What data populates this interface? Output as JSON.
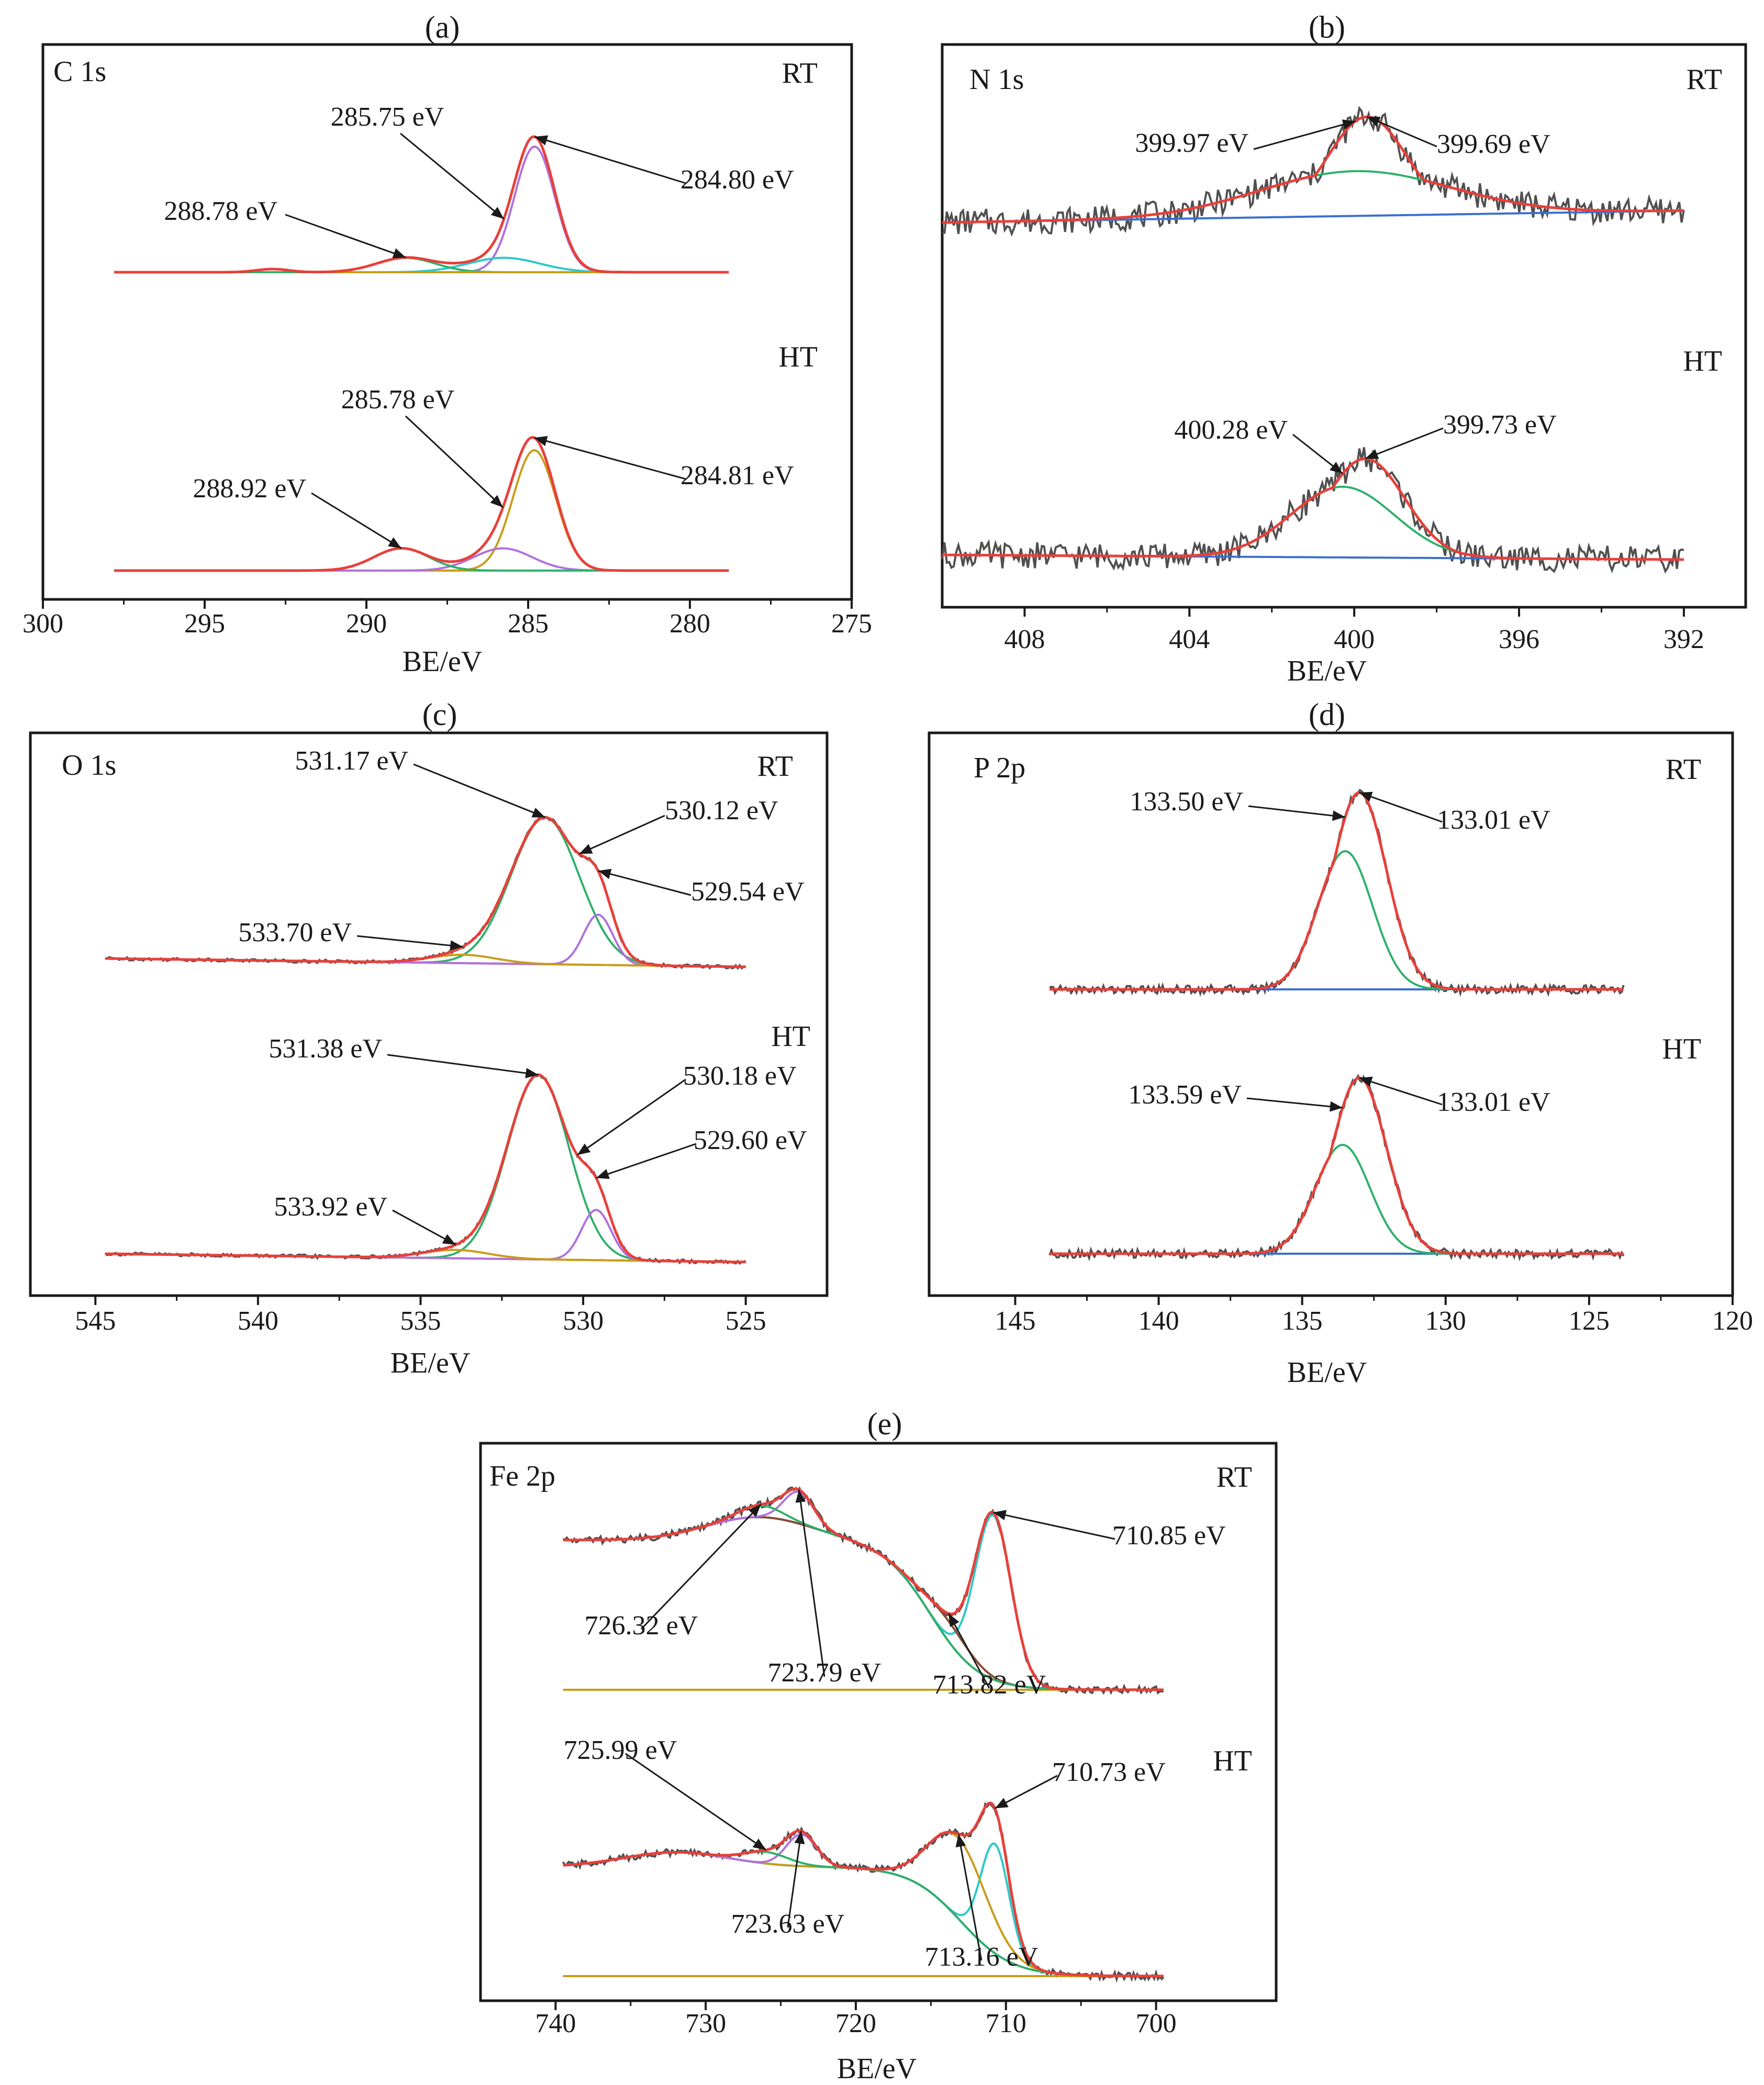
{
  "figure": {
    "x_axis_label": "BE/eV"
  },
  "colors": {
    "raw": "#505050",
    "fit": "#e8403a",
    "background": "#3a6fd1",
    "green": "#2fb06a",
    "purple": "#b070dd",
    "cyan": "#2cc8c8",
    "gold": "#c89c18",
    "brown": "#8a4a33",
    "axis": "#1a1a1a",
    "arrow": "#1a1a1a"
  },
  "chart_data": [
    {
      "id": "a",
      "panel_label": "(a)",
      "type": "line",
      "title": "C 1s",
      "xlabel": "BE/eV",
      "xlim": [
        300,
        275
      ],
      "xticks": [
        300,
        295,
        290,
        285,
        280,
        275
      ],
      "spectra": [
        {
          "name": "RT",
          "x_range": [
            297.8,
            278.8
          ],
          "baseline": 0.5,
          "baseline_right": 0.5,
          "noise": 0.005,
          "components": [
            {
              "color": "purple",
              "center": 284.8,
              "height": 4.8,
              "width": 0.62
            },
            {
              "color": "cyan",
              "center": 285.75,
              "height": 0.55,
              "width": 1.1
            },
            {
              "color": "green",
              "center": 288.78,
              "height": 0.55,
              "width": 0.9
            },
            {
              "color": "gold",
              "center": 292.9,
              "height": 0.12,
              "width": 0.5
            }
          ],
          "annotations": [
            {
              "label": "284.80 eV",
              "peak": 284.8
            },
            {
              "label": "285.75 eV",
              "peak": 285.75
            },
            {
              "label": "288.78 eV",
              "peak": 288.78
            }
          ]
        },
        {
          "name": "HT",
          "x_range": [
            297.8,
            278.8
          ],
          "baseline": 0.0,
          "baseline_right": 0.0,
          "noise": 0.005,
          "components": [
            {
              "color": "gold",
              "center": 284.81,
              "height": 4.6,
              "width": 0.66
            },
            {
              "color": "purple",
              "center": 285.78,
              "height": 0.85,
              "width": 0.9
            },
            {
              "color": "green",
              "center": 288.92,
              "height": 0.85,
              "width": 0.85
            }
          ],
          "annotations": [
            {
              "label": "284.81 eV",
              "peak": 284.81
            },
            {
              "label": "285.78 eV",
              "peak": 285.78
            },
            {
              "label": "288.92 eV",
              "peak": 288.92
            }
          ]
        }
      ]
    },
    {
      "id": "b",
      "panel_label": "(b)",
      "type": "line",
      "title": "N 1s",
      "xlabel": "BE/eV",
      "xlim": [
        410,
        390.5
      ],
      "xticks": [
        408,
        404,
        400,
        396,
        392
      ],
      "spectra": [
        {
          "name": "RT",
          "x_range": [
            410,
            392
          ],
          "baseline": 0.5,
          "baseline_right": 0.75,
          "noise": 0.14,
          "components": [
            {
              "color": "green",
              "center": 399.97,
              "height": 0.95,
              "width": 2.3
            },
            {
              "color": "red",
              "center": 399.69,
              "height": 2.1,
              "width": 0.95
            }
          ],
          "annotations": [
            {
              "label": "399.69 eV",
              "peak": 399.69
            },
            {
              "label": "399.97 eV",
              "peak": 399.97
            }
          ]
        },
        {
          "name": "HT",
          "x_range": [
            410,
            392
          ],
          "baseline": 0.0,
          "baseline_right": -0.1,
          "noise": 0.14,
          "components": [
            {
              "color": "green",
              "center": 400.28,
              "height": 1.5,
              "width": 1.25
            },
            {
              "color": "red",
              "center": 399.73,
              "height": 2.1,
              "width": 0.95
            }
          ],
          "annotations": [
            {
              "label": "399.73 eV",
              "peak": 399.73
            },
            {
              "label": "400.28 eV",
              "peak": 400.28
            }
          ]
        }
      ]
    },
    {
      "id": "c",
      "panel_label": "(c)",
      "type": "line",
      "title": "O 1s",
      "xlabel": "BE/eV",
      "xlim": [
        547,
        522.5
      ],
      "xticks": [
        545,
        540,
        535,
        530,
        525
      ],
      "spectra": [
        {
          "name": "RT",
          "x_range": [
            544.7,
            525
          ],
          "baseline": 0.55,
          "baseline_right": 0.35,
          "noise": 0.02,
          "components": [
            {
              "color": "green",
              "center": 531.17,
              "height": 3.5,
              "width": 1.05
            },
            {
              "color": "purple",
              "center": 529.54,
              "height": 1.2,
              "width": 0.45
            },
            {
              "color": "gold",
              "center": 533.7,
              "height": 0.2,
              "width": 1.0
            }
          ],
          "annotations": [
            {
              "label": "531.17 eV",
              "peak": 531.17
            },
            {
              "label": "530.12 eV",
              "peak": 530.12
            },
            {
              "label": "529.54 eV",
              "peak": 529.54
            },
            {
              "label": "533.70 eV",
              "peak": 533.7
            }
          ]
        },
        {
          "name": "HT",
          "x_range": [
            544.7,
            525
          ],
          "baseline": 0.0,
          "baseline_right": -0.2,
          "noise": 0.02,
          "components": [
            {
              "color": "green",
              "center": 531.38,
              "height": 4.4,
              "width": 0.95
            },
            {
              "color": "purple",
              "center": 529.6,
              "height": 1.2,
              "width": 0.45
            },
            {
              "color": "gold",
              "center": 533.92,
              "height": 0.2,
              "width": 1.0
            }
          ],
          "annotations": [
            {
              "label": "531.38 eV",
              "peak": 531.38
            },
            {
              "label": "530.18 eV",
              "peak": 530.18
            },
            {
              "label": "529.60 eV",
              "peak": 529.6
            },
            {
              "label": "533.92 eV",
              "peak": 533.92
            }
          ]
        }
      ]
    },
    {
      "id": "d",
      "panel_label": "(d)",
      "type": "line",
      "title": "P 2p",
      "xlabel": "BE/eV",
      "xlim": [
        148,
        120
      ],
      "xticks": [
        145,
        140,
        135,
        130,
        125,
        120
      ],
      "spectra": [
        {
          "name": "RT",
          "x_range": [
            143.8,
            123.8
          ],
          "baseline": 0.0,
          "baseline_right": 0.0,
          "noise": 0.05,
          "components": [
            {
              "color": "green",
              "center": 133.5,
              "height": 3.3,
              "width": 0.95
            },
            {
              "color": "red",
              "center": 133.01,
              "height": 4.7,
              "width": 0.95
            }
          ],
          "annotations": [
            {
              "label": "133.01 eV",
              "peak": 133.01
            },
            {
              "label": "133.50 eV",
              "peak": 133.5
            }
          ]
        },
        {
          "name": "HT",
          "x_range": [
            143.8,
            123.8
          ],
          "baseline": 0.0,
          "baseline_right": 0.0,
          "noise": 0.05,
          "components": [
            {
              "color": "green",
              "center": 133.59,
              "height": 2.6,
              "width": 0.95
            },
            {
              "color": "red",
              "center": 133.01,
              "height": 4.2,
              "width": 0.95
            }
          ],
          "annotations": [
            {
              "label": "133.01 eV",
              "peak": 133.01
            },
            {
              "label": "133.59 eV",
              "peak": 133.59
            }
          ]
        }
      ]
    },
    {
      "id": "e",
      "panel_label": "(e)",
      "type": "line",
      "title": "Fe 2p",
      "xlabel": "BE/eV",
      "xlim": [
        745,
        692
      ],
      "xticks": [
        740,
        730,
        720,
        710,
        700
      ],
      "spectra": [
        {
          "name": "RT",
          "x_range": [
            739.5,
            699.5
          ],
          "baseline": 0.0,
          "baseline_right": 0.0,
          "noise": 0.03,
          "step": {
            "color": "brown",
            "center": 715.0,
            "height": 2.6,
            "width": 1.6,
            "shoulder_center": 726.5,
            "shoulder_height": 0.4,
            "shoulder_width": 3.5
          },
          "components": [
            {
              "color": "cyan",
              "center": 710.85,
              "height": 2.85,
              "width": 1.2
            },
            {
              "color": "brown",
              "center": 713.82,
              "height": 0.35,
              "width": 1.5
            },
            {
              "color": "purple",
              "center": 723.79,
              "height": 0.55,
              "width": 1.0
            },
            {
              "color": "green",
              "center": 726.32,
              "height": 0.2,
              "width": 1.4
            }
          ],
          "annotations": [
            {
              "label": "710.85 eV",
              "peak": 710.85
            },
            {
              "label": "713.82 eV",
              "peak": 713.82
            },
            {
              "label": "723.79 eV",
              "peak": 723.79
            },
            {
              "label": "726.32 eV",
              "peak": 726.32
            }
          ]
        },
        {
          "name": "HT",
          "x_range": [
            739.5,
            699.5
          ],
          "baseline": 0.0,
          "baseline_right": 0.0,
          "noise": 0.03,
          "step": {
            "color": "cyan",
            "center": 713.0,
            "height": 1.9,
            "width": 1.7,
            "shoulder_center": 732.0,
            "shoulder_height": 0.25,
            "shoulder_width": 3.5
          },
          "components": [
            {
              "color": "cyan",
              "center": 710.73,
              "height": 1.9,
              "width": 0.95
            },
            {
              "color": "gold",
              "center": 713.16,
              "height": 1.4,
              "width": 1.9
            },
            {
              "color": "purple",
              "center": 723.63,
              "height": 0.55,
              "width": 1.0
            },
            {
              "color": "green",
              "center": 725.99,
              "height": 0.2,
              "width": 1.5
            }
          ],
          "annotations": [
            {
              "label": "710.73 eV",
              "peak": 710.73
            },
            {
              "label": "713.16 eV",
              "peak": 713.16
            },
            {
              "label": "723.63 eV",
              "peak": 723.63
            },
            {
              "label": "725.99 eV",
              "peak": 725.99
            }
          ]
        }
      ]
    }
  ]
}
